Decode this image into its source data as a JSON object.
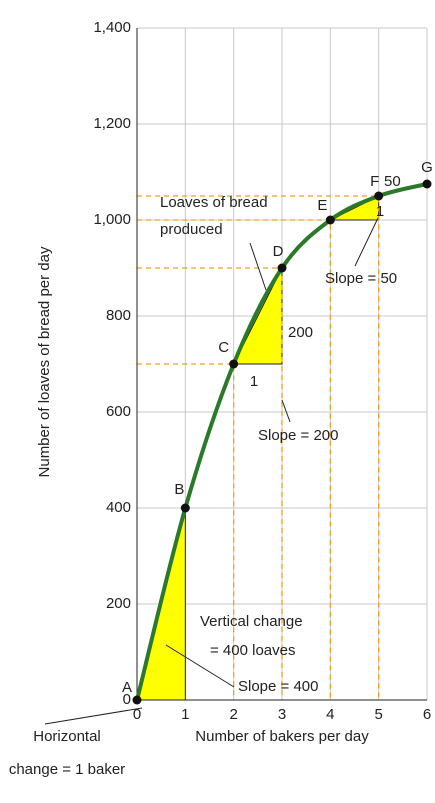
{
  "chart_data": {
    "type": "line",
    "x_label": "Number of bakers per day",
    "y_label": "Number of loaves of bread per day",
    "x": [
      0,
      1,
      2,
      3,
      4,
      5,
      6
    ],
    "values": [
      0,
      400,
      700,
      900,
      1000,
      1050,
      1075
    ],
    "point_labels": [
      "A",
      "B",
      "C",
      "D",
      "E",
      "F",
      "G"
    ],
    "color": "#2a7a2a",
    "triangle_color": "#ffff00",
    "xlim": [
      0,
      6
    ],
    "ylim": [
      0,
      1400
    ],
    "xticks": [
      0,
      1,
      2,
      3,
      4,
      5,
      6
    ],
    "yticks": [
      0,
      200,
      400,
      600,
      800,
      {
        "value": 1000,
        "label": "1,000"
      },
      {
        "value": 1200,
        "label": "1,200"
      },
      {
        "value": 1400,
        "label": "1,400"
      }
    ],
    "grid": true,
    "annotations": [
      "Loaves of bread",
      "produced",
      "Vertical change",
      "= 400 loaves",
      "Slope = 400",
      "Horizontal",
      "change = 1 baker",
      "1",
      "200",
      "Slope = 200",
      "1",
      "50",
      "Slope = 50"
    ]
  }
}
